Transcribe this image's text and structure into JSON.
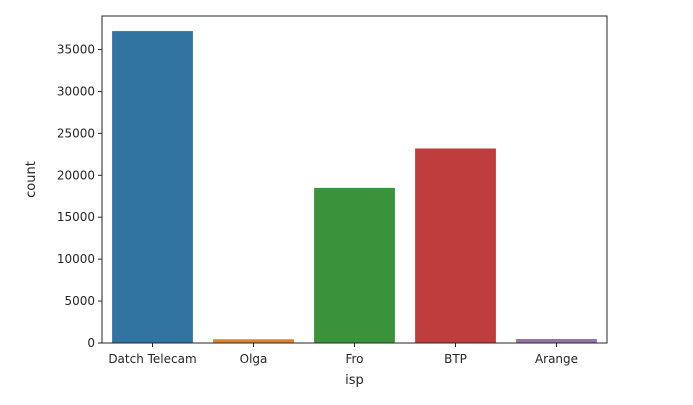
{
  "chart_data": {
    "type": "bar",
    "categories": [
      "Datch Telecam",
      "Olga",
      "Fro",
      "BTP",
      "Arange"
    ],
    "values": [
      37200,
      450,
      18500,
      23200,
      480
    ],
    "colors": [
      "#3274a1",
      "#e1812c",
      "#3a923a",
      "#c03d3e",
      "#9372b2"
    ],
    "title": "",
    "xlabel": "isp",
    "ylabel": "count",
    "ylim": [
      0,
      39000
    ],
    "yticks": [
      0,
      5000,
      10000,
      15000,
      20000,
      25000,
      30000,
      35000
    ],
    "grid": false,
    "legend": "none"
  }
}
